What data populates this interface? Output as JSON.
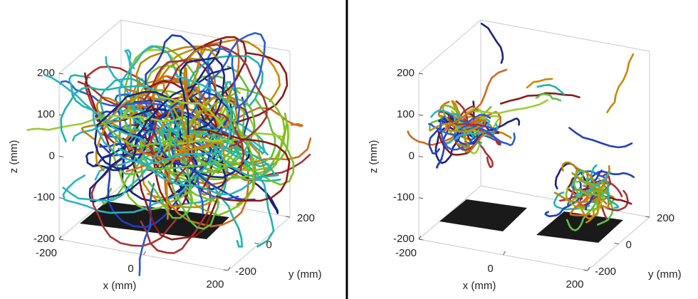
{
  "chart_data": [
    {
      "type": "line3d",
      "xlabel": "x (mm)",
      "ylabel": "y (mm)",
      "zlabel": "z (mm)",
      "xlim": [
        -200,
        200
      ],
      "ylim": [
        -200,
        200
      ],
      "zlim": [
        -200,
        200
      ],
      "xticks": [
        -200,
        0,
        200
      ],
      "yticks": [
        -200,
        0,
        200
      ],
      "zticks": [
        -200,
        -100,
        0,
        100,
        200
      ]
    },
    {
      "type": "line3d",
      "xlabel": "x (mm)",
      "ylabel": "y (mm)",
      "zlabel": "z (mm)",
      "xlim": [
        -200,
        200
      ],
      "ylim": [
        -200,
        200
      ],
      "zlim": [
        -200,
        200
      ],
      "xticks": [
        -200,
        0,
        200
      ],
      "yticks": [
        -200,
        0,
        200
      ],
      "zticks": [
        -200,
        -100,
        0,
        100,
        200
      ]
    }
  ]
}
